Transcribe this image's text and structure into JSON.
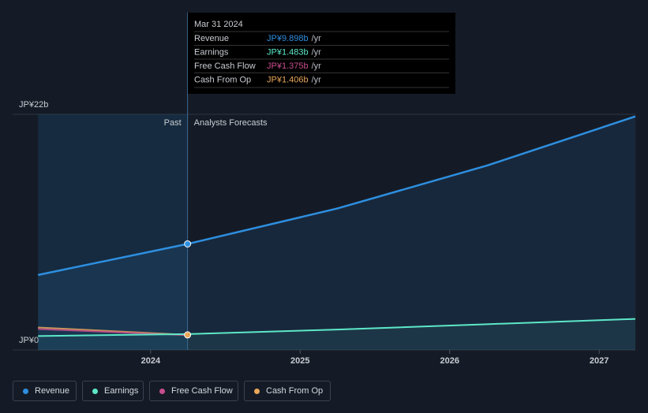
{
  "chart_data": {
    "type": "line",
    "past_label": "Past",
    "forecast_label": "Analysts Forecasts",
    "xlim": [
      2023.077,
      2027.242
    ],
    "xticks": [
      2024,
      2025,
      2026,
      2027
    ],
    "ylim": [
      0,
      22
    ],
    "yticks": [
      {
        "value": 0,
        "label": "JP¥0"
      },
      {
        "value": 22,
        "label": "JP¥22b"
      }
    ],
    "past_end": 2024.247,
    "series": [
      {
        "name": "Revenue",
        "color": "#2e8fe0",
        "x": [
          2023.247,
          2024.247,
          2025.247,
          2026.247,
          2027.242
        ],
        "values": [
          7.0,
          9.898,
          13.2,
          17.2,
          21.8
        ]
      },
      {
        "name": "Earnings",
        "color": "#5de8c8",
        "x": [
          2023.247,
          2024.247,
          2025.247,
          2026.247,
          2027.242
        ],
        "values": [
          1.3,
          1.483,
          1.9,
          2.4,
          2.9
        ]
      },
      {
        "name": "Free Cash Flow",
        "color": "#c84d8f",
        "x": [
          2023.247,
          2024.247
        ],
        "values": [
          1.95,
          1.375
        ]
      },
      {
        "name": "Cash From Op",
        "color": "#e8a75a",
        "x": [
          2023.247,
          2024.247
        ],
        "values": [
          2.1,
          1.406
        ]
      }
    ],
    "tooltip": {
      "date": "Mar 31 2024",
      "rows": [
        {
          "label": "Revenue",
          "value": "JP¥9.898b",
          "suffix": "/yr"
        },
        {
          "label": "Earnings",
          "value": "JP¥1.483b",
          "suffix": "/yr"
        },
        {
          "label": "Free Cash Flow",
          "value": "JP¥1.375b",
          "suffix": "/yr"
        },
        {
          "label": "Cash From Op",
          "value": "JP¥1.406b",
          "suffix": "/yr"
        }
      ]
    }
  }
}
